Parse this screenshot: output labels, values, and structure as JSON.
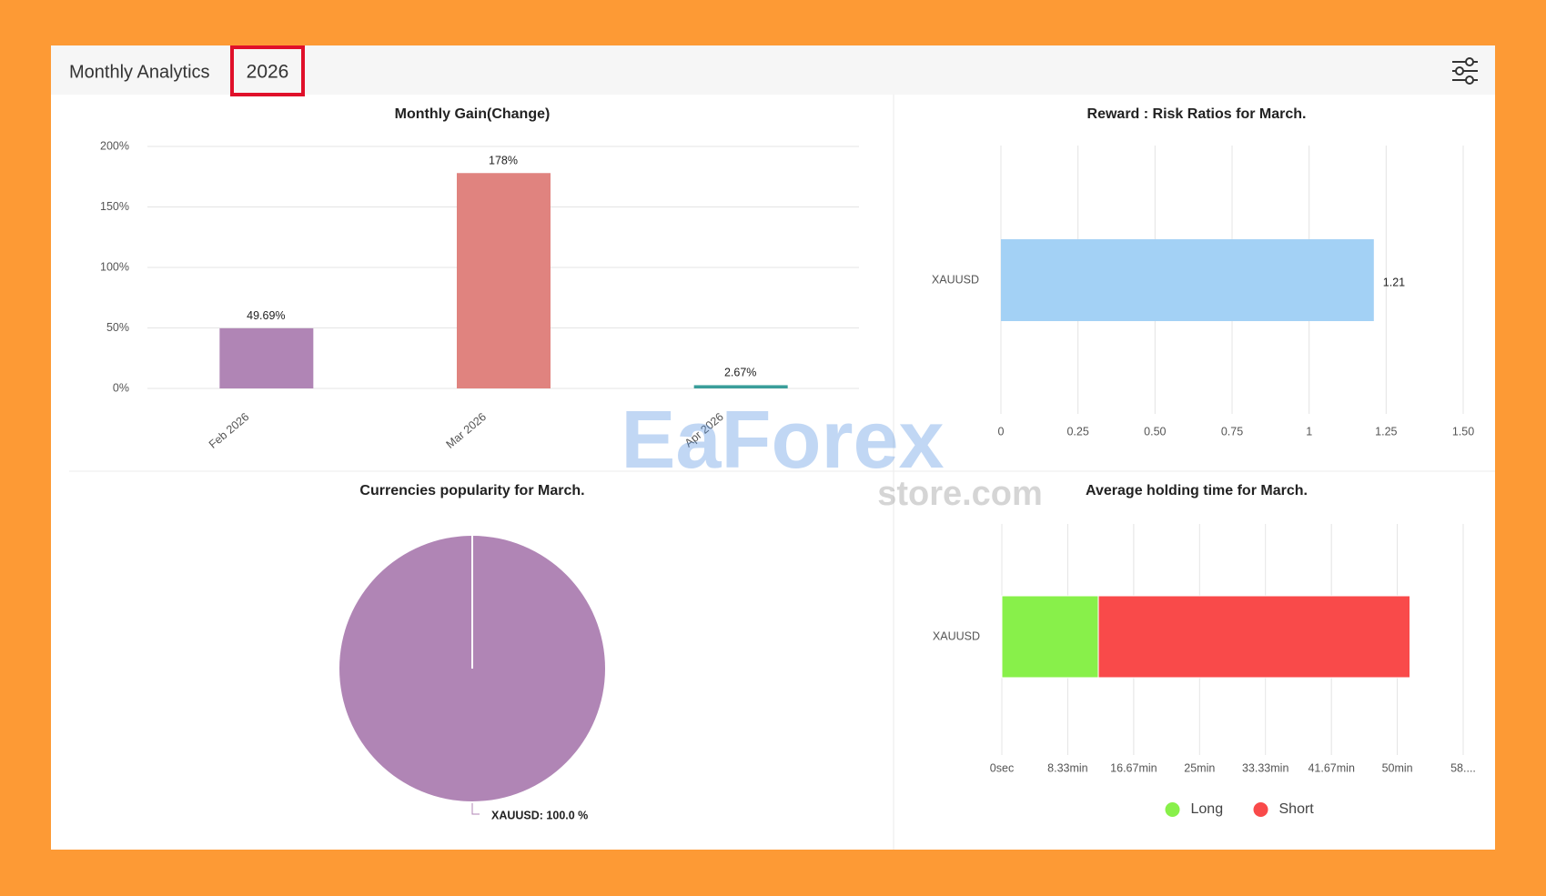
{
  "header": {
    "title": "Monthly Analytics",
    "year": "2026"
  },
  "watermark": {
    "brand": "EaForex",
    "domain": "store.com"
  },
  "chart_data": [
    {
      "type": "bar",
      "title": "Monthly Gain(Change)",
      "categories": [
        "Feb 2026",
        "Mar 2026",
        "Apr 2026"
      ],
      "values": [
        49.69,
        178,
        2.67
      ],
      "value_labels": [
        "49.69%",
        "178%",
        "2.67%"
      ],
      "colors": [
        "#b085b5",
        "#e0837f",
        "#3a9e9a"
      ],
      "ylim": [
        0,
        200
      ],
      "yticks": [
        {
          "value": 0,
          "label": "0%"
        },
        {
          "value": 50,
          "label": "50%"
        },
        {
          "value": 100,
          "label": "100%"
        },
        {
          "value": 150,
          "label": "150%"
        },
        {
          "value": 200,
          "label": "200%"
        }
      ],
      "grid": true
    },
    {
      "type": "hbar",
      "title": "Reward : Risk Ratios for March.",
      "categories": [
        "XAUUSD"
      ],
      "values": [
        1.21
      ],
      "color": "#a3d1f5",
      "xlim": [
        0,
        1.5
      ],
      "xticks": [
        0,
        0.25,
        {
          "value": 0.5,
          "label": "0.50"
        },
        0.75,
        1,
        1.25,
        {
          "value": 1.5,
          "label": "1.50"
        }
      ],
      "grid": true
    },
    {
      "type": "pie",
      "title": "Currencies popularity for March.",
      "categories": [
        "XAUUSD"
      ],
      "values": [
        100
      ],
      "value_labels": [
        "XAUUSD: 100.0 %"
      ],
      "colors": [
        "#b085b5"
      ]
    },
    {
      "type": "stacked-hbar",
      "title": "Average holding time for March.",
      "categories": [
        "XAUUSD"
      ],
      "series": [
        {
          "name": "Long",
          "color": "#88f04a",
          "values": [
            12.2
          ]
        },
        {
          "name": "Short",
          "color": "#f94a4a",
          "values": [
            39.4
          ]
        }
      ],
      "xlim": [
        0,
        58.33
      ],
      "xticks": [
        {
          "value": 0,
          "label": "0sec"
        },
        {
          "value": 8.33,
          "label": "8.33min"
        },
        {
          "value": 16.67,
          "label": "16.67min"
        },
        {
          "value": 25,
          "label": "25min"
        },
        {
          "value": 33.33,
          "label": "33.33min"
        },
        {
          "value": 41.67,
          "label": "41.67min"
        },
        {
          "value": 50,
          "label": "50min"
        },
        {
          "value": 58.33,
          "label": "58...."
        }
      ],
      "grid": true,
      "legend": "bottom"
    }
  ]
}
